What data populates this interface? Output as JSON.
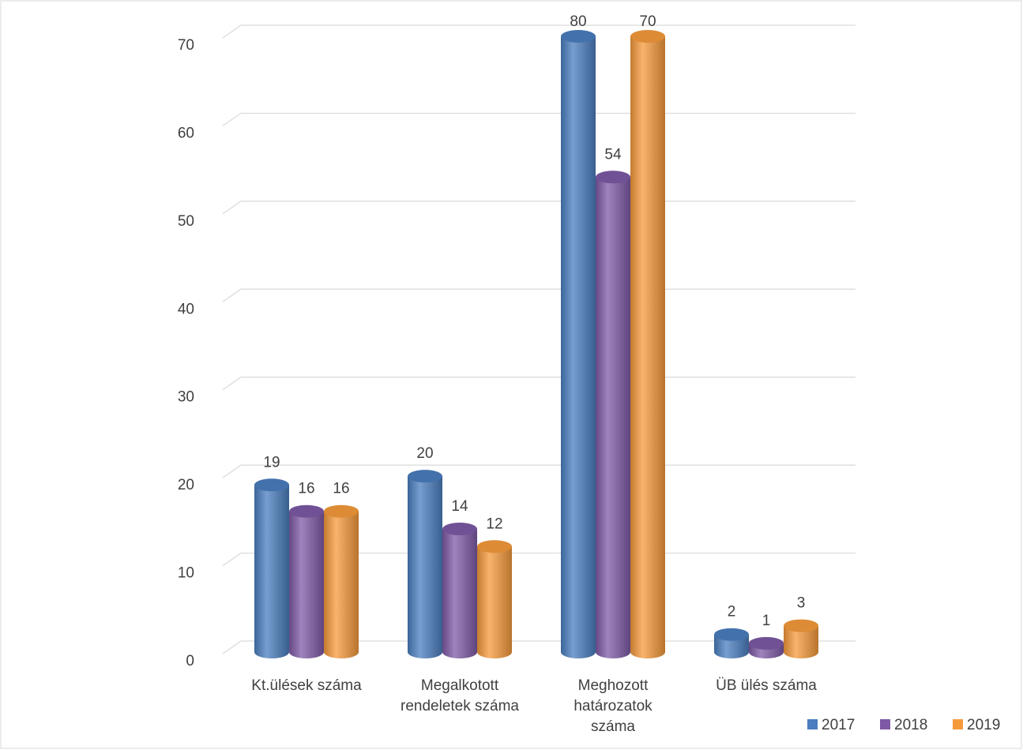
{
  "chart_data": {
    "type": "bar3d",
    "categories": [
      "Kt.ülések száma",
      "Megalkotott\nrendeletek száma",
      "Meghozott\nhatározatok\nszáma",
      "ÜB ülés száma"
    ],
    "series": [
      {
        "name": "2017",
        "color": "#4a7ebf",
        "values": [
          19,
          20,
          80,
          2
        ]
      },
      {
        "name": "2018",
        "color": "#7e5aa6",
        "values": [
          16,
          14,
          54,
          1
        ]
      },
      {
        "name": "2019",
        "color": "#f59a3b",
        "values": [
          16,
          12,
          70,
          3
        ]
      }
    ],
    "ylim": [
      0,
      70
    ],
    "yticks": [
      0,
      10,
      20,
      30,
      40,
      50,
      60,
      70
    ],
    "grid": true,
    "legend": "bottom-right"
  }
}
